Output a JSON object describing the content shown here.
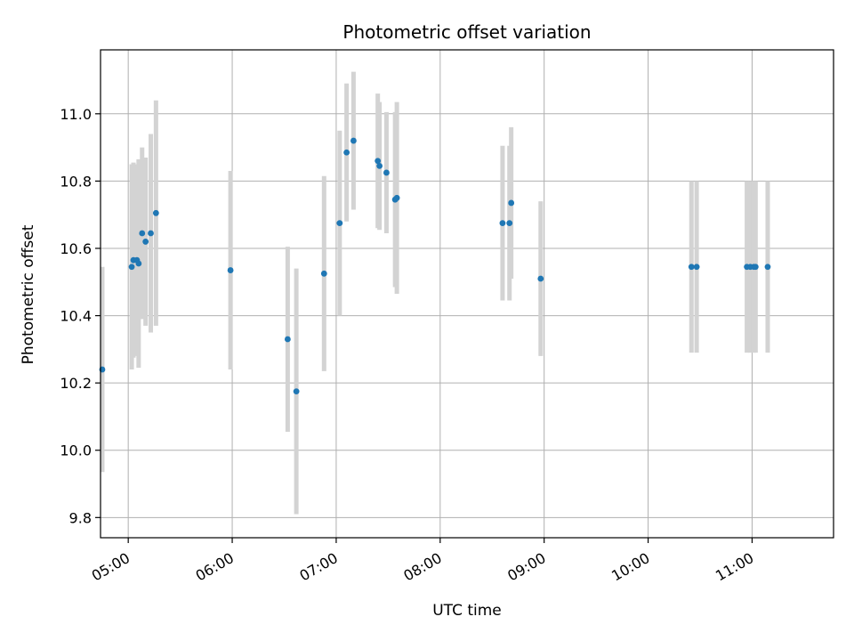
{
  "chart_data": {
    "type": "scatter",
    "title": "Photometric offset variation",
    "xlabel": "UTC time",
    "ylabel": "Photometric offset",
    "xlim": [
      "04:44",
      "11:47"
    ],
    "ylim": [
      9.74,
      11.19
    ],
    "x_ticks": [
      "05:00",
      "06:00",
      "07:00",
      "08:00",
      "09:00",
      "10:00",
      "11:00"
    ],
    "y_ticks": [
      "9.8",
      "10.0",
      "10.2",
      "10.4",
      "10.6",
      "10.8",
      "11.0"
    ],
    "grid": true,
    "legend": "none",
    "colors": {
      "points": "#1f77b4",
      "error_bars": "#d3d3d3",
      "grid": "#b0b0b0"
    },
    "points": [
      {
        "x": "04:45",
        "y": 10.24,
        "err": 0.305
      },
      {
        "x": "05:02",
        "y": 10.545,
        "err": 0.305
      },
      {
        "x": "05:03",
        "y": 10.565,
        "err": 0.29
      },
      {
        "x": "05:05",
        "y": 10.565,
        "err": 0.285
      },
      {
        "x": "05:06",
        "y": 10.555,
        "err": 0.31
      },
      {
        "x": "05:08",
        "y": 10.645,
        "err": 0.255
      },
      {
        "x": "05:10",
        "y": 10.62,
        "err": 0.25
      },
      {
        "x": "05:13",
        "y": 10.645,
        "err": 0.295
      },
      {
        "x": "05:16",
        "y": 10.705,
        "err": 0.335
      },
      {
        "x": "05:59",
        "y": 10.535,
        "err": 0.295
      },
      {
        "x": "06:32",
        "y": 10.33,
        "err": 0.275
      },
      {
        "x": "06:37",
        "y": 10.175,
        "err": 0.365
      },
      {
        "x": "06:53",
        "y": 10.525,
        "err": 0.29
      },
      {
        "x": "07:02",
        "y": 10.675,
        "err": 0.275
      },
      {
        "x": "07:06",
        "y": 10.885,
        "err": 0.205
      },
      {
        "x": "07:10",
        "y": 10.92,
        "err": 0.205
      },
      {
        "x": "07:24",
        "y": 10.86,
        "err": 0.2
      },
      {
        "x": "07:25",
        "y": 10.845,
        "err": 0.19
      },
      {
        "x": "07:29",
        "y": 10.825,
        "err": 0.18
      },
      {
        "x": "07:34",
        "y": 10.745,
        "err": 0.26
      },
      {
        "x": "07:35",
        "y": 10.75,
        "err": 0.285
      },
      {
        "x": "08:36",
        "y": 10.675,
        "err": 0.23
      },
      {
        "x": "08:40",
        "y": 10.675,
        "err": 0.23
      },
      {
        "x": "08:41",
        "y": 10.735,
        "err": 0.225
      },
      {
        "x": "08:58",
        "y": 10.51,
        "err": 0.23
      },
      {
        "x": "10:25",
        "y": 10.545,
        "err": 0.255
      },
      {
        "x": "10:28",
        "y": 10.545,
        "err": 0.255
      },
      {
        "x": "10:57",
        "y": 10.545,
        "err": 0.255
      },
      {
        "x": "10:59",
        "y": 10.545,
        "err": 0.255
      },
      {
        "x": "11:01",
        "y": 10.545,
        "err": 0.255
      },
      {
        "x": "11:02",
        "y": 10.545,
        "err": 0.255
      },
      {
        "x": "11:09",
        "y": 10.545,
        "err": 0.255
      }
    ]
  }
}
